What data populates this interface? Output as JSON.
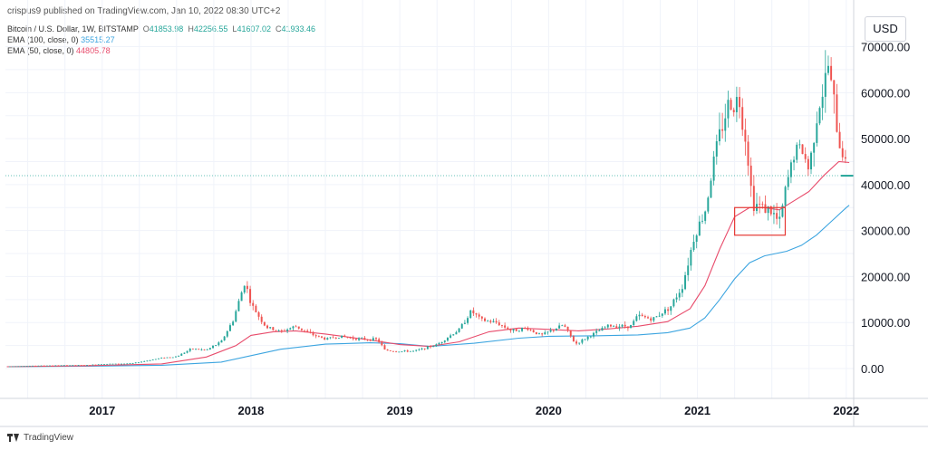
{
  "header": {
    "published": "crispus9 published on TradingView.com, Jan 10, 2022 08:30 UTC+2"
  },
  "legend": {
    "title": "Bitcoin / U.S. Dollar, 1W, BITSTAMP",
    "ohlc": [
      {
        "key": "O",
        "value": "41853.98"
      },
      {
        "key": "H",
        "value": "42256.55"
      },
      {
        "key": "L",
        "value": "41607.02"
      },
      {
        "key": "C",
        "value": "41933.46"
      }
    ],
    "ema100_label": "EMA (100, close, 0)",
    "ema100_value": "35515.27",
    "ema50_label": "EMA (50, close, 0)",
    "ema50_value": "44805.78"
  },
  "currency_label": "USD",
  "footer": {
    "brand": "TradingView"
  },
  "colors": {
    "up": "#26a69a",
    "down": "#ef5350",
    "ema100": "#3da5e0",
    "ema50": "#e84c6c",
    "grid": "#f0f3fa",
    "price_line": "#26a69a",
    "box": "#e53935"
  },
  "chart_data": {
    "type": "line",
    "title": "Bitcoin / U.S. Dollar, 1W, BITSTAMP",
    "y_axis": {
      "ticks": [
        0,
        10000,
        20000,
        30000,
        40000,
        50000,
        60000,
        70000
      ],
      "tick_labels": [
        "0.00",
        "10000.00",
        "20000.00",
        "30000.00",
        "40000.00",
        "50000.00",
        "60000.00",
        "70000.00"
      ],
      "range": [
        -6500,
        77000
      ],
      "side": "right"
    },
    "x_axis": {
      "range": [
        2016.35,
        2022.05
      ],
      "ticks": [
        2017,
        2018,
        2019,
        2020,
        2021,
        2022
      ],
      "tick_labels": [
        "2017",
        "2018",
        "2019",
        "2020",
        "2021",
        "2022"
      ]
    },
    "current_price": 41933.46,
    "grid": true,
    "price_series_nodes": [
      [
        2016.36,
        450
      ],
      [
        2016.6,
        650
      ],
      [
        2016.9,
        750
      ],
      [
        2017.0,
        980
      ],
      [
        2017.2,
        1100
      ],
      [
        2017.4,
        2300
      ],
      [
        2017.5,
        2600
      ],
      [
        2017.6,
        4300
      ],
      [
        2017.7,
        4000
      ],
      [
        2017.8,
        5800
      ],
      [
        2017.88,
        10500
      ],
      [
        2017.96,
        19000
      ],
      [
        2018.0,
        14000
      ],
      [
        2018.1,
        9000
      ],
      [
        2018.2,
        8000
      ],
      [
        2018.3,
        9200
      ],
      [
        2018.4,
        7500
      ],
      [
        2018.5,
        6400
      ],
      [
        2018.6,
        7000
      ],
      [
        2018.7,
        6500
      ],
      [
        2018.85,
        6300
      ],
      [
        2018.9,
        4000
      ],
      [
        2018.97,
        3700
      ],
      [
        2019.1,
        3800
      ],
      [
        2019.25,
        5200
      ],
      [
        2019.4,
        8500
      ],
      [
        2019.48,
        12500
      ],
      [
        2019.55,
        10500
      ],
      [
        2019.65,
        10000
      ],
      [
        2019.75,
        8200
      ],
      [
        2019.85,
        8800
      ],
      [
        2019.95,
        7200
      ],
      [
        2020.1,
        9500
      ],
      [
        2020.18,
        5300
      ],
      [
        2020.3,
        7500
      ],
      [
        2020.4,
        9300
      ],
      [
        2020.55,
        9200
      ],
      [
        2020.6,
        11500
      ],
      [
        2020.7,
        10700
      ],
      [
        2020.82,
        13500
      ],
      [
        2020.9,
        18000
      ],
      [
        2020.98,
        29000
      ],
      [
        2021.05,
        34000
      ],
      [
        2021.12,
        47000
      ],
      [
        2021.2,
        57000
      ],
      [
        2021.28,
        58500
      ],
      [
        2021.33,
        49000
      ],
      [
        2021.37,
        36000
      ],
      [
        2021.45,
        35000
      ],
      [
        2021.5,
        34000
      ],
      [
        2021.55,
        31500
      ],
      [
        2021.6,
        40000
      ],
      [
        2021.65,
        47000
      ],
      [
        2021.7,
        48000
      ],
      [
        2021.75,
        43000
      ],
      [
        2021.8,
        55000
      ],
      [
        2021.85,
        61000
      ],
      [
        2021.88,
        66000
      ],
      [
        2021.92,
        57000
      ],
      [
        2021.95,
        49000
      ],
      [
        2021.98,
        47000
      ],
      [
        2022.01,
        41900
      ]
    ],
    "series": [
      {
        "name": "EMA (100, close, 0)",
        "color": "#3da5e0",
        "x": [
          2016.36,
          2016.9,
          2017.4,
          2017.8,
          2018.0,
          2018.2,
          2018.5,
          2018.8,
          2019.0,
          2019.2,
          2019.5,
          2019.8,
          2020.0,
          2020.3,
          2020.6,
          2020.8,
          2020.95,
          2021.05,
          2021.15,
          2021.25,
          2021.35,
          2021.45,
          2021.6,
          2021.7,
          2021.8,
          2021.9,
          2022.0,
          2022.02
        ],
        "values": [
          400,
          500,
          700,
          1400,
          2800,
          4200,
          5300,
          5600,
          5400,
          4800,
          5500,
          6600,
          7000,
          7100,
          7300,
          7800,
          8800,
          11000,
          15000,
          19500,
          23000,
          24500,
          25500,
          26800,
          29000,
          32000,
          35000,
          35515
        ]
      },
      {
        "name": "EMA (50, close, 0)",
        "color": "#e84c6c",
        "x": [
          2016.36,
          2016.9,
          2017.4,
          2017.7,
          2017.9,
          2018.0,
          2018.15,
          2018.3,
          2018.5,
          2018.8,
          2019.0,
          2019.2,
          2019.4,
          2019.6,
          2019.8,
          2020.0,
          2020.2,
          2020.4,
          2020.6,
          2020.8,
          2020.95,
          2021.05,
          2021.15,
          2021.25,
          2021.35,
          2021.45,
          2021.55,
          2021.65,
          2021.75,
          2021.85,
          2021.95,
          2022.02
        ],
        "values": [
          400,
          600,
          1000,
          2500,
          5000,
          7200,
          8000,
          8200,
          7500,
          6200,
          5200,
          4800,
          5800,
          8000,
          8800,
          8500,
          8200,
          8600,
          9200,
          10200,
          13000,
          18000,
          26000,
          33000,
          35000,
          35000,
          34500,
          36500,
          38500,
          42000,
          45000,
          44806
        ]
      }
    ],
    "annotation_box": {
      "x": [
        2021.25,
        2021.59
      ],
      "y": [
        29000,
        35000
      ]
    }
  }
}
